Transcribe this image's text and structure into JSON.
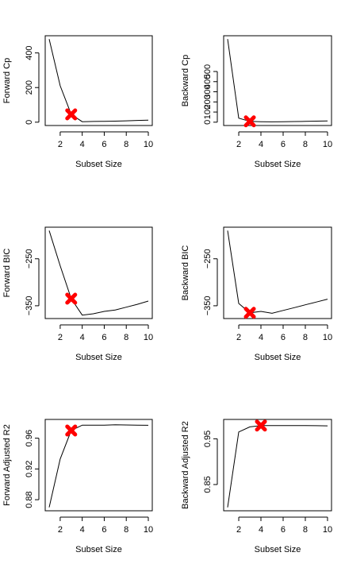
{
  "chart_data": [
    {
      "type": "line",
      "ylabel": "Forward Cp",
      "xlabel": "Subset Size",
      "x": [
        1,
        2,
        3,
        4,
        5,
        6,
        7,
        8,
        9,
        10
      ],
      "y": [
        480,
        210,
        45,
        3,
        4,
        5,
        6,
        8,
        10,
        12
      ],
      "highlight": {
        "x": 3,
        "y": 45
      },
      "xlim": [
        1,
        10
      ],
      "ylim": [
        0,
        480
      ],
      "xticks": [
        2,
        4,
        6,
        8,
        10
      ],
      "yticks": [
        0,
        200,
        400
      ]
    },
    {
      "type": "line",
      "ylabel": "Backward Cp",
      "xlabel": "Subset Size",
      "x": [
        1,
        2,
        3,
        4,
        5,
        6,
        7,
        8,
        9,
        10
      ],
      "y": [
        820,
        40,
        8,
        5,
        3,
        4,
        6,
        8,
        10,
        12
      ],
      "highlight": {
        "x": 3,
        "y": 8
      },
      "xlim": [
        1,
        10
      ],
      "ylim": [
        0,
        820
      ],
      "xticks": [
        2,
        4,
        6,
        8,
        10
      ],
      "yticks": [
        0,
        100,
        200,
        300,
        400,
        500
      ]
    },
    {
      "type": "line",
      "ylabel": "Forward BIC",
      "xlabel": "Subset Size",
      "x": [
        1,
        2,
        3,
        4,
        5,
        6,
        7,
        8,
        9,
        10
      ],
      "y": [
        -190,
        -265,
        -335,
        -370,
        -367,
        -362,
        -359,
        -353,
        -347,
        -340
      ],
      "highlight": {
        "x": 3,
        "y": -335
      },
      "xlim": [
        1,
        10
      ],
      "ylim": [
        -370,
        -190
      ],
      "xticks": [
        2,
        4,
        6,
        8,
        10
      ],
      "yticks": [
        -350,
        -250
      ]
    },
    {
      "type": "line",
      "ylabel": "Backward BIC",
      "xlabel": "Subset Size",
      "x": [
        1,
        2,
        3,
        4,
        5,
        6,
        7,
        8,
        9,
        10
      ],
      "y": [
        -190,
        -345,
        -365,
        -362,
        -366,
        -360,
        -354,
        -348,
        -342,
        -336
      ],
      "highlight": {
        "x": 3,
        "y": -365
      },
      "xlim": [
        1,
        10
      ],
      "ylim": [
        -370,
        -190
      ],
      "xticks": [
        2,
        4,
        6,
        8,
        10
      ],
      "yticks": [
        -350,
        -250
      ]
    },
    {
      "type": "line",
      "ylabel": "Forward Adjusted R2",
      "xlabel": "Subset Size",
      "x": [
        1,
        2,
        3,
        4,
        5,
        6,
        7,
        8,
        9,
        10
      ],
      "y": [
        0.87,
        0.933,
        0.97,
        0.977,
        0.977,
        0.977,
        0.9775,
        0.9772,
        0.977,
        0.9768
      ],
      "highlight": {
        "x": 3,
        "y": 0.97
      },
      "xlim": [
        1,
        10
      ],
      "ylim": [
        0.87,
        0.98
      ],
      "xticks": [
        2,
        4,
        6,
        8,
        10
      ],
      "yticks": [
        0.88,
        0.92,
        0.96
      ]
    },
    {
      "type": "line",
      "ylabel": "Backward Adjusted R2",
      "xlabel": "Subset Size",
      "x": [
        1,
        2,
        3,
        4,
        5,
        6,
        7,
        8,
        9,
        10
      ],
      "y": [
        0.8,
        0.965,
        0.976,
        0.979,
        0.979,
        0.979,
        0.979,
        0.9788,
        0.9786,
        0.9784
      ],
      "highlight": {
        "x": 4,
        "y": 0.979
      },
      "xlim": [
        1,
        10
      ],
      "ylim": [
        0.8,
        0.985
      ],
      "xticks": [
        2,
        4,
        6,
        8,
        10
      ],
      "yticks": [
        0.85,
        0.95
      ]
    }
  ],
  "colors": {
    "highlight": "#ff0000",
    "line": "#000000"
  }
}
